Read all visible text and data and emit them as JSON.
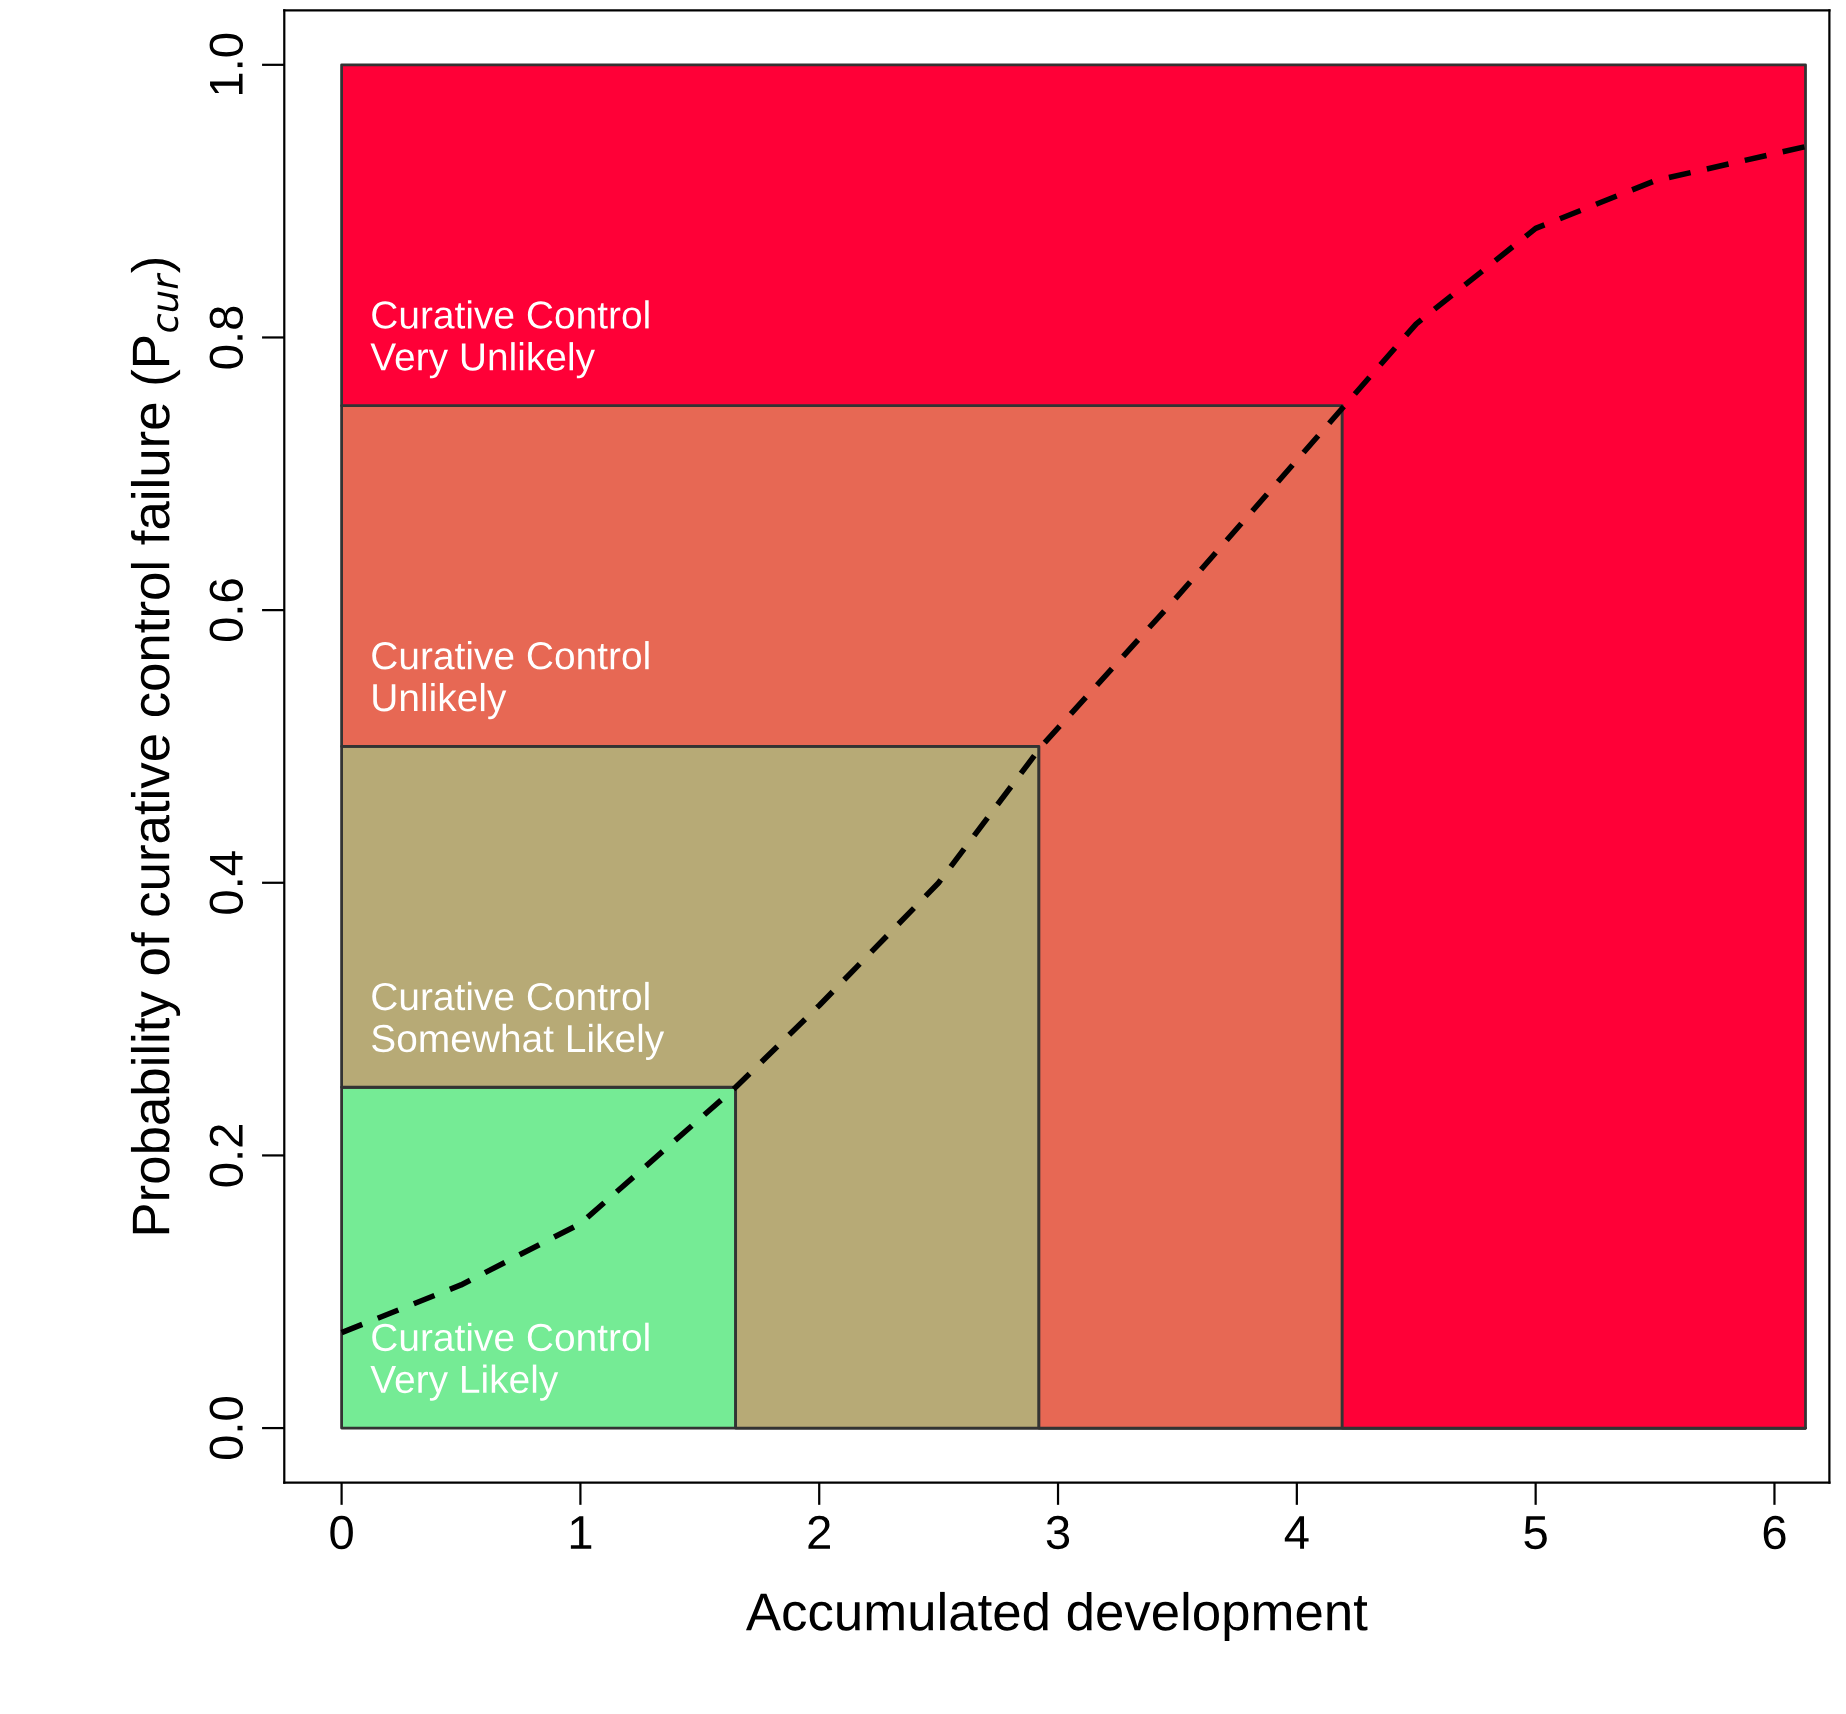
{
  "chart_data": {
    "type": "area",
    "stacked": true,
    "xlabel": "Accumulated development",
    "ylabel": "Probability of curative control failure (P$_{cur}$)",
    "xlim": [
      -0.24,
      6.23
    ],
    "ylim": [
      -0.04,
      1.04
    ],
    "xticks": [
      0,
      1,
      2,
      3,
      4,
      5,
      6
    ],
    "yticks": [
      {
        "value": 0,
        "label": "0.0"
      },
      0.2,
      0.4,
      0.6,
      0.8,
      {
        "value": 1,
        "label": "1.0"
      }
    ],
    "grid": false,
    "legend": false,
    "x": [
      0,
      1.65,
      1.65,
      2.92,
      2.92,
      4.19,
      4.19,
      6.13
    ],
    "series": [
      {
        "name": "Curative Control\nVery Likely",
        "color": "#75eb95",
        "values": [
          0.25,
          0.25,
          0,
          0,
          0,
          0,
          0,
          0
        ]
      },
      {
        "name": "Curative Control\nSomewhat Likely",
        "color": "#b7aa76",
        "values": [
          0.25,
          0.25,
          0.5,
          0.5,
          0,
          0,
          0,
          0
        ]
      },
      {
        "name": "Curative Control\nUnlikely",
        "color": "#e76854",
        "values": [
          0.25,
          0.25,
          0.25,
          0.25,
          0.75,
          0.75,
          0,
          0
        ]
      },
      {
        "name": "Curative Control\nVery Unlikely",
        "color": "#ff0037",
        "values": [
          0.25,
          0.25,
          0.25,
          0.25,
          0.25,
          0.25,
          1.0,
          1.0
        ]
      },
      {
        "type": "line",
        "color": "#000000",
        "line_style": "dashed",
        "marker": "none",
        "x": [
          0,
          0.5,
          1,
          1.65,
          2,
          2.5,
          2.93,
          3.5,
          4.2,
          4.5,
          5,
          5.5,
          6.13
        ],
        "values": [
          0.07,
          0.105,
          0.15,
          0.25,
          0.31,
          0.4,
          0.5,
          0.61,
          0.75,
          0.81,
          0.88,
          0.915,
          0.94
        ]
      }
    ]
  }
}
